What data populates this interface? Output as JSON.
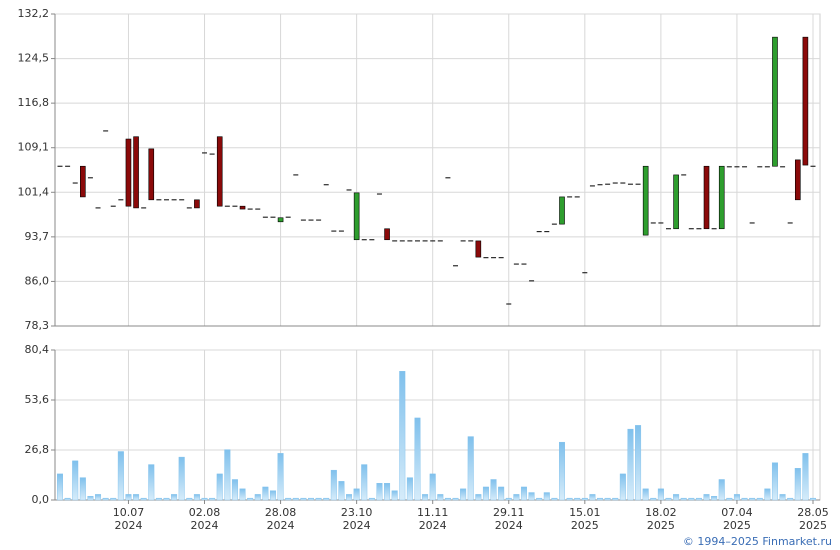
{
  "chart_data": [
    {
      "type": "candlestick",
      "open": [
        105.9,
        105.9,
        103.0,
        105.9,
        103.9,
        98.7,
        112.0,
        99.0,
        100.1,
        110.6,
        111.0,
        98.7,
        108.9,
        100.1,
        100.1,
        100.1,
        100.1,
        98.7,
        100.1,
        108.2,
        108.0,
        111.0,
        99.0,
        99.0,
        99.0,
        98.5,
        98.5,
        97.1,
        97.1,
        96.3,
        97.1,
        104.4,
        96.6,
        96.6,
        96.6,
        102.7,
        94.7,
        94.7,
        101.8,
        93.2,
        93.2,
        93.2,
        101.1,
        95.1,
        93.0,
        93.0,
        93.0,
        93.0,
        93.0,
        93.0,
        93.0,
        103.9,
        88.7,
        93.0,
        93.0,
        93.0,
        90.1,
        90.1,
        90.1,
        82.1,
        89.0,
        89.0,
        86.1,
        94.6,
        94.6,
        95.9,
        95.9,
        100.6,
        100.6,
        87.5,
        102.5,
        102.7,
        102.8,
        103.0,
        103.0,
        102.8,
        102.8,
        94.0,
        96.1,
        96.1,
        95.1,
        95.1,
        104.4,
        95.1,
        95.1,
        105.9,
        95.1,
        95.1,
        105.8,
        105.8,
        105.8,
        96.1,
        105.8,
        105.8,
        105.9,
        105.8,
        96.1,
        107.0,
        128.2,
        105.9
      ],
      "close": [
        105.9,
        105.9,
        103.0,
        100.6,
        103.9,
        98.7,
        112.0,
        99.0,
        100.1,
        99.0,
        98.7,
        98.7,
        100.1,
        100.1,
        100.1,
        100.1,
        100.1,
        98.7,
        98.7,
        108.2,
        108.0,
        99.0,
        99.0,
        99.0,
        98.5,
        98.5,
        98.5,
        97.1,
        97.1,
        97.0,
        97.1,
        104.4,
        96.6,
        96.6,
        96.6,
        102.7,
        94.7,
        94.7,
        101.8,
        101.3,
        93.2,
        93.2,
        101.1,
        93.2,
        93.0,
        93.0,
        93.0,
        93.0,
        93.0,
        93.0,
        93.0,
        103.9,
        88.7,
        93.0,
        93.0,
        90.2,
        90.1,
        90.1,
        90.1,
        82.1,
        89.0,
        89.0,
        86.1,
        94.6,
        94.6,
        95.9,
        100.6,
        100.6,
        100.6,
        87.5,
        102.5,
        102.7,
        102.8,
        103.0,
        103.0,
        102.8,
        102.8,
        105.9,
        96.1,
        96.1,
        95.1,
        104.4,
        104.4,
        95.1,
        95.1,
        95.1,
        95.1,
        105.9,
        105.8,
        105.8,
        105.8,
        96.1,
        105.8,
        105.8,
        128.2,
        105.8,
        96.1,
        100.1,
        106.1,
        105.9
      ],
      "up_color": "#2e9e2e",
      "down_color": "#8b0a0a",
      "flat_color": "#000000",
      "ylim": [
        78.3,
        132.2
      ],
      "yticks": [
        {
          "value": 78.3,
          "label": "78,3"
        },
        {
          "value": 86.0,
          "label": "86,0"
        },
        {
          "value": 93.7,
          "label": "93,7"
        },
        {
          "value": 101.4,
          "label": "101,4"
        },
        {
          "value": 109.1,
          "label": "109,1"
        },
        {
          "value": 116.8,
          "label": "116,8"
        },
        {
          "value": 124.5,
          "label": "124,5"
        },
        {
          "value": 132.2,
          "label": "132,2"
        }
      ],
      "grid": true
    },
    {
      "type": "bar",
      "categories": [
        null,
        null,
        null,
        null,
        null,
        null,
        null,
        null,
        null,
        "10.07 2024",
        null,
        null,
        null,
        null,
        null,
        null,
        null,
        null,
        null,
        "02.08 2024",
        null,
        null,
        null,
        null,
        null,
        null,
        null,
        null,
        null,
        "28.08 2024",
        null,
        null,
        null,
        null,
        null,
        null,
        null,
        null,
        null,
        "23.10 2024",
        null,
        null,
        null,
        null,
        null,
        null,
        null,
        null,
        null,
        "11.11 2024",
        null,
        null,
        null,
        null,
        null,
        null,
        null,
        null,
        null,
        "29.11 2024",
        null,
        null,
        null,
        null,
        null,
        null,
        null,
        null,
        null,
        "15.01 2025",
        null,
        null,
        null,
        null,
        null,
        null,
        null,
        null,
        null,
        "18.02 2025",
        null,
        null,
        null,
        null,
        null,
        null,
        null,
        null,
        null,
        "07.04 2025",
        null,
        null,
        null,
        null,
        null,
        null,
        null,
        null,
        null,
        "28.05 2025"
      ],
      "values": [
        14,
        1,
        21,
        12,
        2,
        3,
        1,
        1,
        26,
        3,
        3,
        1,
        19,
        1,
        1,
        3,
        23,
        1,
        3,
        1,
        1,
        14,
        27,
        11,
        6,
        1,
        3,
        7,
        5,
        25,
        1,
        1,
        1,
        1,
        1,
        1,
        16,
        10,
        3,
        6,
        19,
        1,
        9,
        9,
        5,
        69,
        12,
        44,
        3,
        14,
        3,
        1,
        1,
        6,
        34,
        3,
        7,
        11,
        7,
        1,
        3,
        7,
        4,
        1,
        4,
        1,
        31,
        1,
        1,
        1,
        3,
        1,
        1,
        1,
        14,
        38,
        40,
        6,
        1,
        6,
        1,
        3,
        1,
        1,
        1,
        3,
        2,
        11,
        1,
        3,
        1,
        1,
        1,
        6,
        20,
        3,
        1,
        17,
        25,
        1
      ],
      "color": "#7fc0ec",
      "ylim": [
        0,
        80.4
      ],
      "yticks": [
        {
          "value": 0,
          "label": "0,0"
        },
        {
          "value": 26.8,
          "label": "26,8"
        },
        {
          "value": 53.6,
          "label": "53,6"
        },
        {
          "value": 80.4,
          "label": "80,4"
        }
      ],
      "grid": true
    }
  ],
  "footer": "© 1994–2025 Finmarket.ru"
}
